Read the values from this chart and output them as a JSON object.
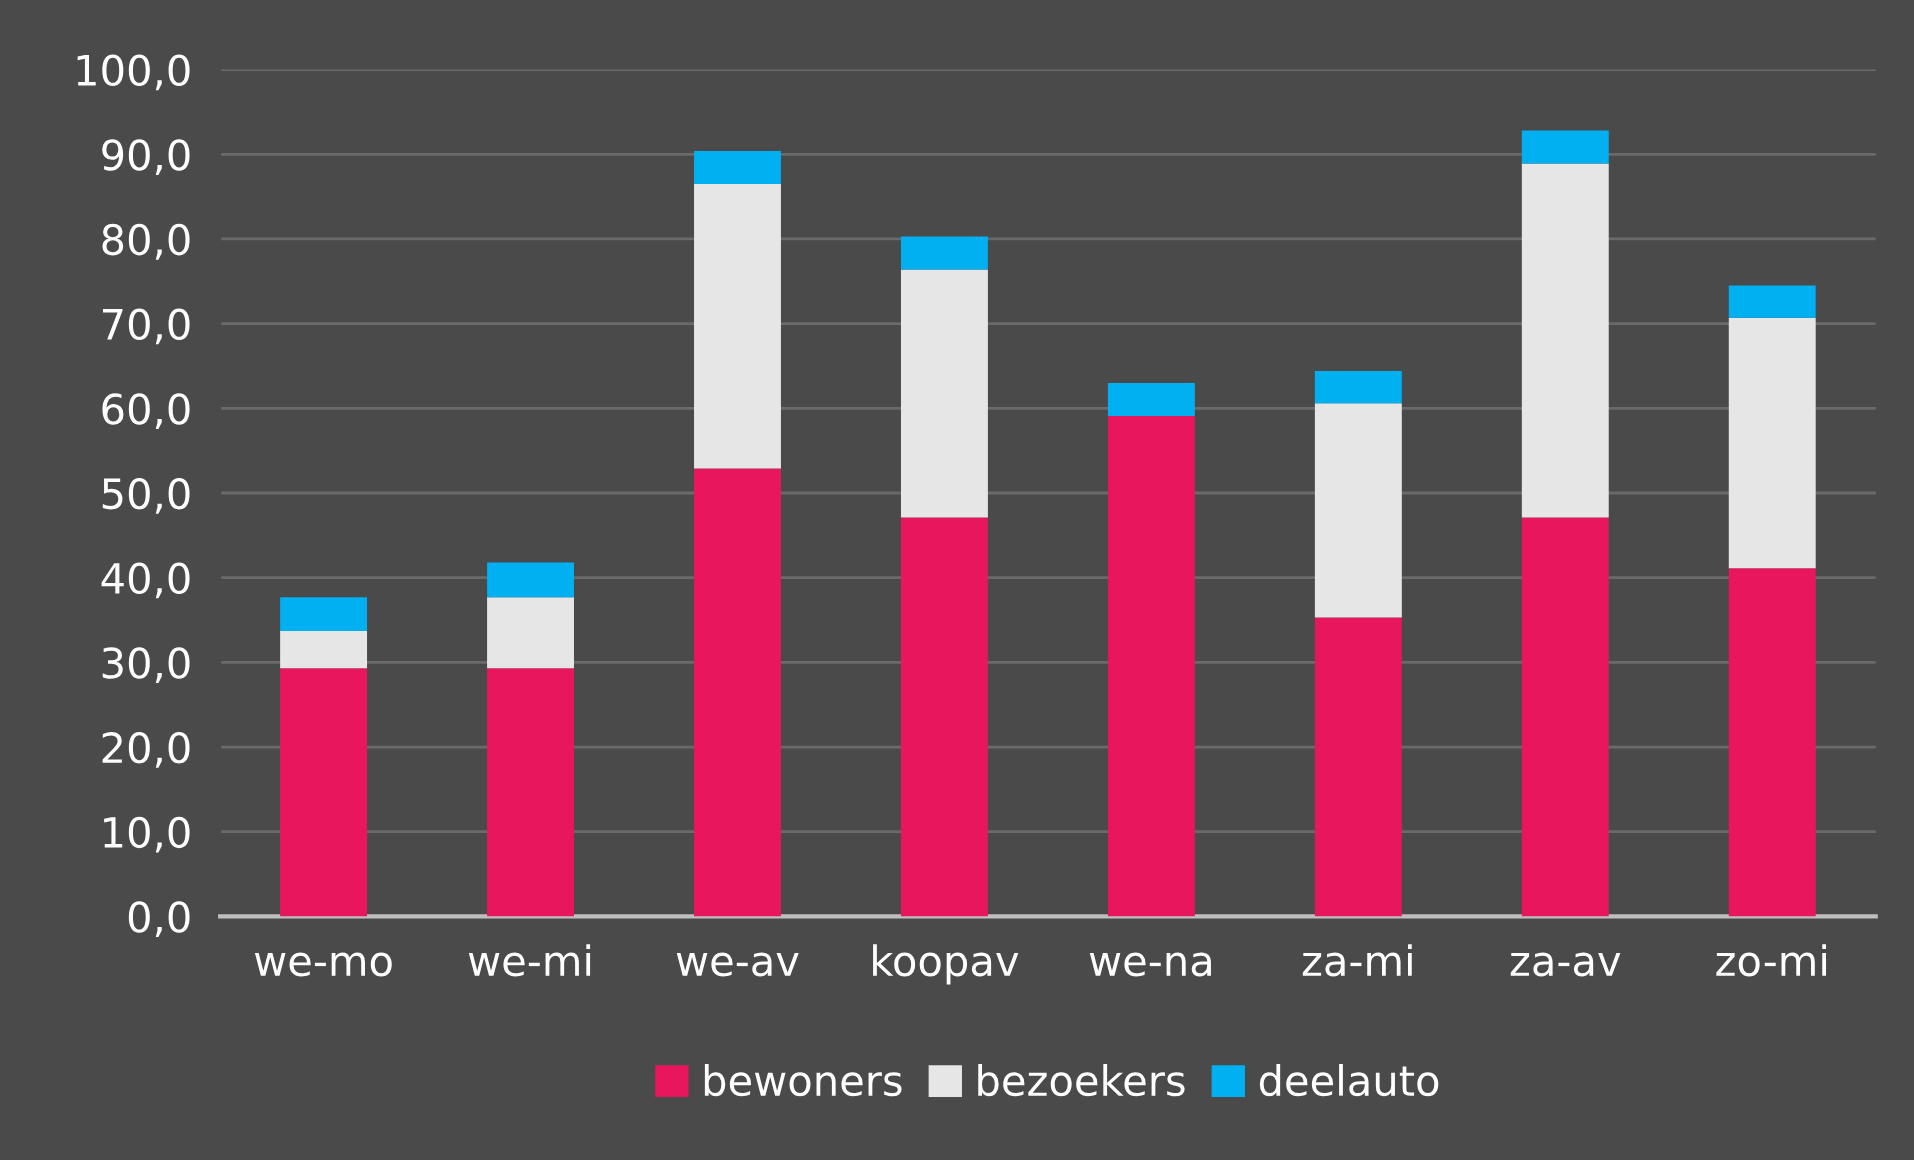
{
  "chart_data": {
    "type": "bar",
    "stacked": true,
    "categories": [
      "we-mo",
      "we-mi",
      "we-av",
      "koopav",
      "we-na",
      "za-mi",
      "za-av",
      "zo-mi"
    ],
    "series": [
      {
        "name": "bewoners",
        "color": "#e8175d",
        "values": [
          29.3,
          29.3,
          52.9,
          47.1,
          59.1,
          35.3,
          47.1,
          41.1
        ]
      },
      {
        "name": "bezoekers",
        "color": "#e6e6e6",
        "values": [
          4.4,
          8.4,
          33.6,
          29.3,
          0,
          25.3,
          41.8,
          29.6
        ]
      },
      {
        "name": "deelauto",
        "color": "#00b0f0",
        "values": [
          4.0,
          4.1,
          3.9,
          3.9,
          3.9,
          3.8,
          3.9,
          3.8
        ]
      }
    ],
    "ylim": [
      0,
      100
    ],
    "yticks": [
      {
        "value": 0,
        "label": "0,0"
      },
      {
        "value": 10,
        "label": "10,0"
      },
      {
        "value": 20,
        "label": "20,0"
      },
      {
        "value": 30,
        "label": "30,0"
      },
      {
        "value": 40,
        "label": "40,0"
      },
      {
        "value": 50,
        "label": "50,0"
      },
      {
        "value": 60,
        "label": "60,0"
      },
      {
        "value": 70,
        "label": "70,0"
      },
      {
        "value": 80,
        "label": "80,0"
      },
      {
        "value": 90,
        "label": "90,0"
      },
      {
        "value": 100,
        "label": "100,0"
      }
    ],
    "grid": "y",
    "legend": "bottom"
  }
}
